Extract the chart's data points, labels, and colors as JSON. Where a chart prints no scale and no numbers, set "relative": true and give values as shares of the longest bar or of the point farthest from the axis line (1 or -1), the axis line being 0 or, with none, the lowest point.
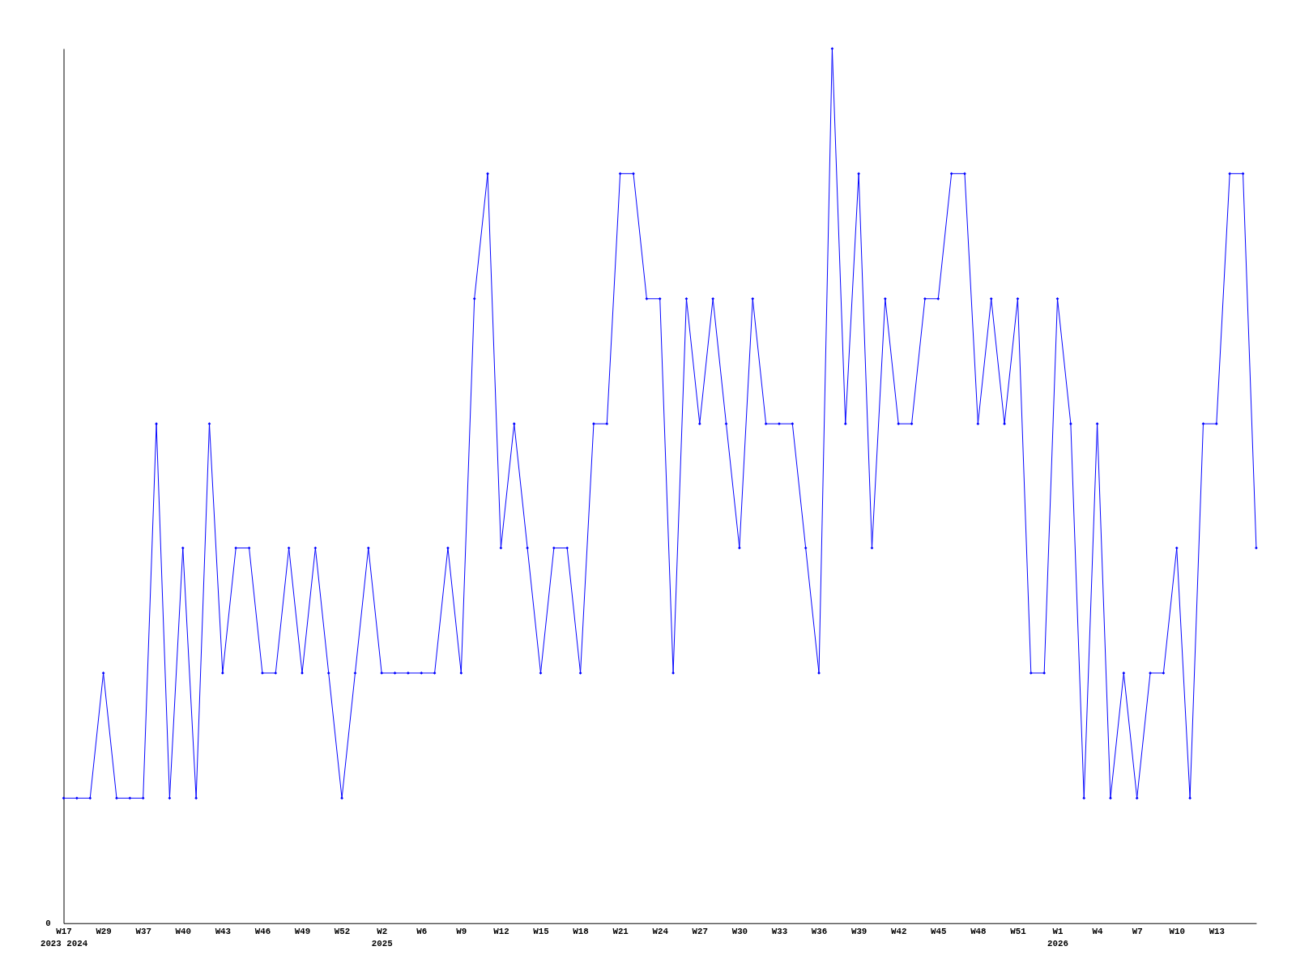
{
  "chart_data": {
    "type": "line",
    "relative": true,
    "color": "#0000ff",
    "marker": "diamond",
    "line_style": "solid",
    "grid": false,
    "categories": [
      "W17\n2023 2024",
      null,
      null,
      "W29",
      null,
      null,
      "W37",
      null,
      null,
      "W40",
      null,
      null,
      "W43",
      null,
      null,
      "W46",
      null,
      null,
      "W49",
      null,
      null,
      "W52",
      null,
      null,
      "W2\n2025",
      null,
      null,
      "W6",
      null,
      null,
      "W9",
      null,
      null,
      "W12",
      null,
      null,
      "W15",
      null,
      null,
      "W18",
      null,
      null,
      "W21",
      null,
      null,
      "W24",
      null,
      null,
      "W27",
      null,
      null,
      "W30",
      null,
      null,
      "W33",
      null,
      null,
      "W36",
      null,
      null,
      "W39",
      null,
      null,
      "W42",
      null,
      null,
      "W45",
      null,
      null,
      "W48",
      null,
      null,
      "W51",
      null,
      null,
      "W1\n2026",
      null,
      null,
      "W4",
      null,
      null,
      "W7",
      null,
      null,
      "W10",
      null,
      null,
      "W13",
      null,
      null,
      null
    ],
    "values": [
      0.143,
      0.143,
      0.143,
      0.286,
      0.143,
      0.143,
      0.143,
      0.571,
      0.143,
      0.429,
      0.143,
      0.571,
      0.286,
      0.429,
      0.429,
      0.286,
      0.286,
      0.429,
      0.286,
      0.429,
      0.286,
      0.143,
      0.286,
      0.429,
      0.286,
      0.286,
      0.286,
      0.286,
      0.286,
      0.429,
      0.286,
      0.714,
      0.857,
      0.429,
      0.571,
      0.429,
      0.286,
      0.429,
      0.429,
      0.286,
      0.571,
      0.571,
      0.857,
      0.857,
      0.714,
      0.714,
      0.286,
      0.714,
      0.571,
      0.714,
      0.571,
      0.429,
      0.714,
      0.571,
      0.571,
      0.571,
      0.429,
      0.286,
      1,
      0.571,
      0.857,
      0.429,
      0.714,
      0.571,
      0.571,
      0.714,
      0.714,
      0.857,
      0.857,
      0.571,
      0.714,
      0.571,
      0.714,
      0.286,
      0.286,
      0.714,
      0.571,
      0.143,
      0.571,
      0.143,
      0.286,
      0.143,
      0.286,
      0.286,
      0.429,
      0.143,
      0.571,
      0.571,
      0.857,
      0.857,
      0.429
    ],
    "annotations": [
      "0"
    ]
  }
}
